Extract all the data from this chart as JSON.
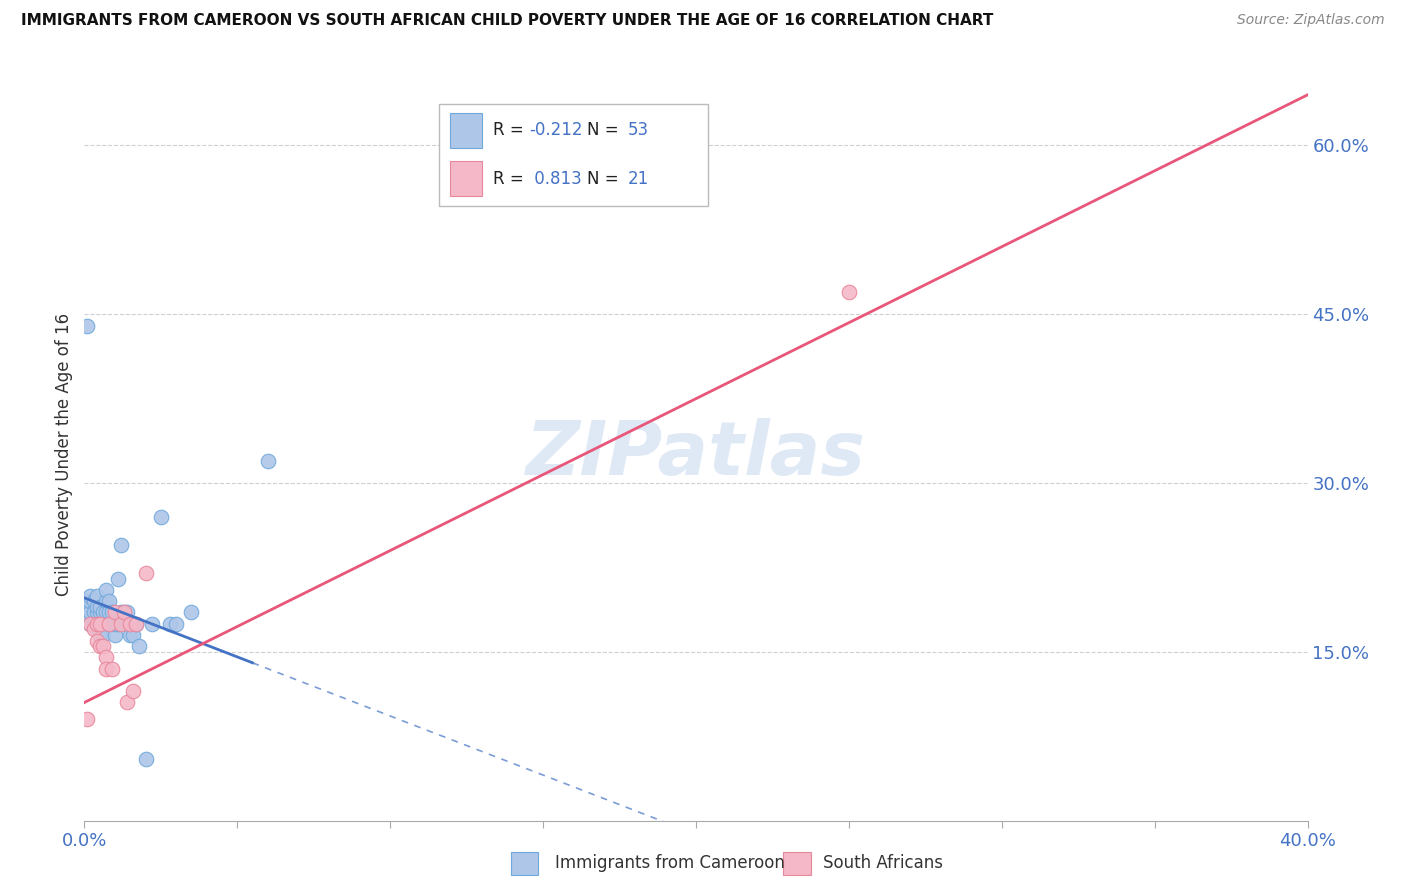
{
  "title": "IMMIGRANTS FROM CAMEROON VS SOUTH AFRICAN CHILD POVERTY UNDER THE AGE OF 16 CORRELATION CHART",
  "source": "Source: ZipAtlas.com",
  "ylabel_label": "Child Poverty Under the Age of 16",
  "legend_label1": "Immigrants from Cameroon",
  "legend_label2": "South Africans",
  "R1": "-0.212",
  "N1": "53",
  "R2": "0.813",
  "N2": "21",
  "watermark": "ZIPatlas",
  "blue_color": "#aec6e8",
  "blue_edge_color": "#6fa8dc",
  "blue_line_color": "#4472c4",
  "pink_color": "#f4b8c8",
  "pink_edge_color": "#e8869a",
  "pink_line_color": "#e8567a",
  "blue_scatter_x": [
    0.001,
    0.001,
    0.002,
    0.002,
    0.002,
    0.002,
    0.003,
    0.003,
    0.003,
    0.003,
    0.004,
    0.004,
    0.004,
    0.004,
    0.004,
    0.005,
    0.005,
    0.005,
    0.005,
    0.005,
    0.006,
    0.006,
    0.006,
    0.006,
    0.007,
    0.007,
    0.007,
    0.008,
    0.008,
    0.008,
    0.009,
    0.009,
    0.01,
    0.01,
    0.011,
    0.011,
    0.012,
    0.012,
    0.013,
    0.014,
    0.014,
    0.015,
    0.016,
    0.017,
    0.018,
    0.02,
    0.022,
    0.025,
    0.028,
    0.03,
    0.035,
    0.06,
    0.001
  ],
  "blue_scatter_y": [
    0.195,
    0.18,
    0.175,
    0.185,
    0.195,
    0.2,
    0.175,
    0.185,
    0.175,
    0.195,
    0.185,
    0.175,
    0.17,
    0.19,
    0.2,
    0.175,
    0.185,
    0.175,
    0.165,
    0.19,
    0.175,
    0.185,
    0.175,
    0.165,
    0.185,
    0.195,
    0.205,
    0.175,
    0.185,
    0.195,
    0.185,
    0.175,
    0.165,
    0.175,
    0.175,
    0.215,
    0.245,
    0.185,
    0.185,
    0.185,
    0.175,
    0.165,
    0.165,
    0.175,
    0.155,
    0.055,
    0.175,
    0.27,
    0.175,
    0.175,
    0.185,
    0.32,
    0.44
  ],
  "pink_scatter_x": [
    0.001,
    0.002,
    0.003,
    0.004,
    0.004,
    0.005,
    0.005,
    0.006,
    0.007,
    0.007,
    0.008,
    0.009,
    0.01,
    0.012,
    0.013,
    0.014,
    0.015,
    0.016,
    0.017,
    0.02,
    0.25
  ],
  "pink_scatter_y": [
    0.09,
    0.175,
    0.17,
    0.16,
    0.175,
    0.175,
    0.155,
    0.155,
    0.145,
    0.135,
    0.175,
    0.135,
    0.185,
    0.175,
    0.185,
    0.105,
    0.175,
    0.115,
    0.175,
    0.22,
    0.47
  ],
  "blue_line_x0": 0.0,
  "blue_line_x_solid_end": 0.055,
  "blue_line_x_dash_end": 0.4,
  "blue_line_y0": 0.198,
  "blue_line_slope": -1.05,
  "pink_line_x0": 0.0,
  "pink_line_x1": 0.4,
  "pink_line_y0": 0.105,
  "pink_line_slope": 1.35,
  "xmin": 0.0,
  "xmax": 0.4,
  "ymin": 0.0,
  "ymax": 0.65,
  "x_tick_positions": [
    0.0,
    0.05,
    0.1,
    0.15,
    0.2,
    0.25,
    0.3,
    0.35,
    0.4
  ],
  "y_tick_positions": [
    0.15,
    0.3,
    0.45,
    0.6
  ],
  "background_color": "#ffffff",
  "grid_color": "#d0d0d0"
}
